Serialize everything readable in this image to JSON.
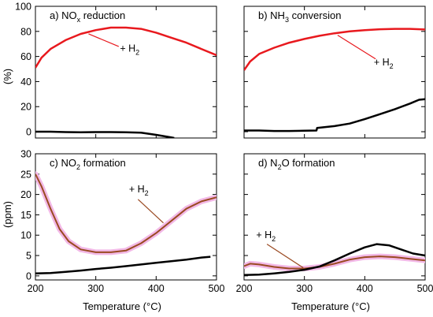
{
  "ylabel": "(%)",
  "ylabel2": "(ppm)",
  "xlabel": "Temperature (°C)",
  "annotation": "+ H",
  "annotation_sub": "2",
  "colors": {
    "with_h2": "#e8191e",
    "with_h2_brown": "#9a4a22",
    "halo": "#f2b8e6",
    "baseline": "#000000",
    "axis": "#000000"
  },
  "chart_data": [
    {
      "type": "line",
      "panel": "a",
      "title_parts": [
        "a) NO",
        "x",
        " reduction"
      ],
      "title_sub_index": 1,
      "xlim": [
        200,
        500
      ],
      "ylim": [
        -5,
        100
      ],
      "yticks": [
        0,
        20,
        40,
        60,
        80,
        100
      ],
      "xticks": [
        200,
        300,
        400,
        500
      ],
      "show_ytick_labels": true,
      "show_xtick_labels": false,
      "series": [
        {
          "name": "+ H2",
          "style": "red",
          "x": [
            200,
            210,
            225,
            250,
            275,
            300,
            325,
            350,
            375,
            400,
            425,
            450,
            475,
            500
          ],
          "y": [
            51,
            59,
            66,
            73,
            78,
            81,
            83,
            83,
            82,
            79,
            75,
            71,
            66,
            61
          ]
        },
        {
          "style": "black",
          "x": [
            200,
            225,
            250,
            275,
            300,
            325,
            350,
            375,
            400,
            425,
            430
          ],
          "y": [
            0,
            0,
            -0.3,
            -0.4,
            -0.3,
            -0.3,
            -0.4,
            -0.8,
            -2.5,
            -4.5,
            -5
          ]
        }
      ],
      "annotation": {
        "x": 340,
        "y": 64,
        "line_from": [
          338,
          68
        ],
        "line_to": [
          288,
          78
        ]
      }
    },
    {
      "type": "line",
      "panel": "b",
      "title_parts": [
        "b) NH",
        "3",
        " conversion"
      ],
      "title_sub_index": 1,
      "xlim": [
        200,
        500
      ],
      "ylim": [
        -5,
        100
      ],
      "yticks": [
        0,
        20,
        40,
        60,
        80,
        100
      ],
      "xticks": [
        200,
        300,
        400,
        500
      ],
      "show_ytick_labels": false,
      "show_xtick_labels": false,
      "series": [
        {
          "name": "+ H2",
          "style": "red",
          "x": [
            200,
            210,
            225,
            250,
            275,
            300,
            325,
            350,
            375,
            400,
            425,
            450,
            475,
            500
          ],
          "y": [
            49,
            56,
            62,
            67,
            71,
            74,
            76.5,
            78.5,
            80,
            81,
            81.7,
            82,
            82,
            81.5
          ]
        },
        {
          "style": "black",
          "x": [
            200,
            225,
            250,
            275,
            300,
            320,
            321,
            350,
            375,
            400,
            425,
            450,
            475,
            490,
            500
          ],
          "y": [
            1,
            1,
            0.6,
            0.6,
            0.8,
            1,
            3,
            4.5,
            6.5,
            10,
            14,
            18,
            22.5,
            25.5,
            26
          ]
        }
      ],
      "annotation": {
        "x": 415,
        "y": 53,
        "line_from": [
          418,
          58
        ],
        "line_to": [
          355,
          77
        ]
      }
    },
    {
      "type": "line",
      "panel": "c",
      "title_parts": [
        "c) NO",
        "2",
        " formation"
      ],
      "title_sub_index": 1,
      "xlim": [
        200,
        500
      ],
      "ylim": [
        -1,
        30
      ],
      "yticks": [
        0,
        5,
        10,
        15,
        20,
        25,
        30
      ],
      "xticks": [
        200,
        300,
        400,
        500
      ],
      "show_ytick_labels": true,
      "show_xtick_labels": true,
      "series": [
        {
          "name": "+ H2",
          "style": "brown",
          "x": [
            200,
            210,
            225,
            240,
            255,
            275,
            300,
            325,
            350,
            375,
            400,
            425,
            450,
            475,
            500
          ],
          "y": [
            25,
            22,
            16.5,
            11.5,
            8.5,
            6.5,
            5.8,
            5.8,
            6.2,
            8,
            10.5,
            13.5,
            16.5,
            18.3,
            19.3
          ]
        },
        {
          "style": "black",
          "x": [
            200,
            225,
            250,
            275,
            300,
            325,
            350,
            375,
            400,
            425,
            450,
            475,
            490
          ],
          "y": [
            0.6,
            0.7,
            1,
            1.3,
            1.7,
            2,
            2.4,
            2.8,
            3.2,
            3.6,
            4,
            4.5,
            4.7
          ]
        }
      ],
      "annotation": {
        "x": 355,
        "y": 20.5,
        "line_from": [
          370,
          18.8
        ],
        "line_to": [
          412,
          13
        ]
      }
    },
    {
      "type": "line",
      "panel": "d",
      "title_parts": [
        "d) N",
        "2",
        "O formation"
      ],
      "title_sub_index": 1,
      "xlim": [
        200,
        500
      ],
      "ylim": [
        -1,
        30
      ],
      "yticks": [
        0,
        5,
        10,
        15,
        20,
        25,
        30
      ],
      "xticks": [
        200,
        300,
        400,
        500
      ],
      "show_ytick_labels": false,
      "show_xtick_labels": true,
      "series": [
        {
          "name": "+ H2",
          "style": "brown",
          "x": [
            200,
            210,
            225,
            250,
            275,
            300,
            325,
            350,
            375,
            400,
            425,
            450,
            475,
            500
          ],
          "y": [
            2.4,
            3,
            2.8,
            2.2,
            1.8,
            1.8,
            2.2,
            3,
            4,
            4.6,
            4.8,
            4.6,
            4.2,
            3.8
          ]
        },
        {
          "style": "black",
          "x": [
            200,
            225,
            250,
            275,
            300,
            325,
            350,
            375,
            400,
            420,
            440,
            460,
            480,
            500
          ],
          "y": [
            0.2,
            0.3,
            0.6,
            1,
            1.5,
            2.3,
            3.8,
            5.5,
            7,
            7.8,
            7.5,
            6.5,
            5.5,
            5
          ]
        }
      ],
      "annotation": {
        "x": 220,
        "y": 9.3,
        "line_from": [
          238,
          7.8
        ],
        "line_to": [
          298,
          2
        ]
      }
    }
  ]
}
